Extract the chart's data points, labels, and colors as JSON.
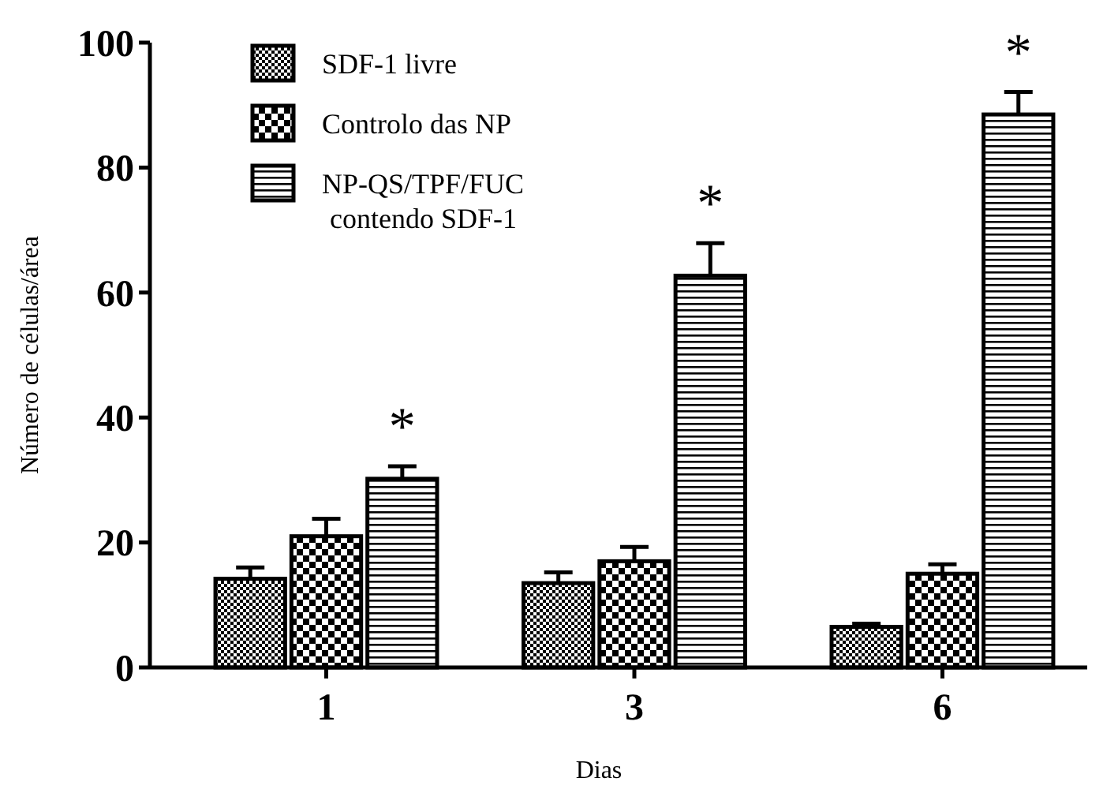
{
  "chart_data": {
    "type": "bar",
    "xlabel": "Dias",
    "ylabel": "Número de células/área",
    "categories": [
      "1",
      "3",
      "6"
    ],
    "series": [
      {
        "name": "SDF-1 livre",
        "color": "#000000",
        "values": [
          14.2,
          13.5,
          6.5
        ],
        "errors": [
          [
            14.2,
            16
          ],
          [
            13.5,
            15.2
          ],
          [
            6.5,
            7
          ]
        ]
      },
      {
        "name": "Controlo das NP",
        "color": "#000000",
        "values": [
          21,
          17,
          15
        ],
        "errors": [
          [
            21,
            23.8
          ],
          [
            17,
            19.3
          ],
          [
            15,
            16.5
          ]
        ]
      },
      {
        "name": "NP-QS/TPF/FUC\ncontendo SDF-1",
        "color": "#000000",
        "values": [
          30.2,
          62.7,
          88.5
        ],
        "errors": [
          [
            30.2,
            32.2
          ],
          [
            62.7,
            67.9
          ],
          [
            88.5,
            92.1
          ]
        ]
      }
    ],
    "ylim": [
      0,
      100
    ],
    "yticks": [
      0,
      20,
      40,
      60,
      80,
      100
    ],
    "legend": "top left",
    "grid": false,
    "annotations": [
      "*",
      "*",
      "*"
    ]
  }
}
